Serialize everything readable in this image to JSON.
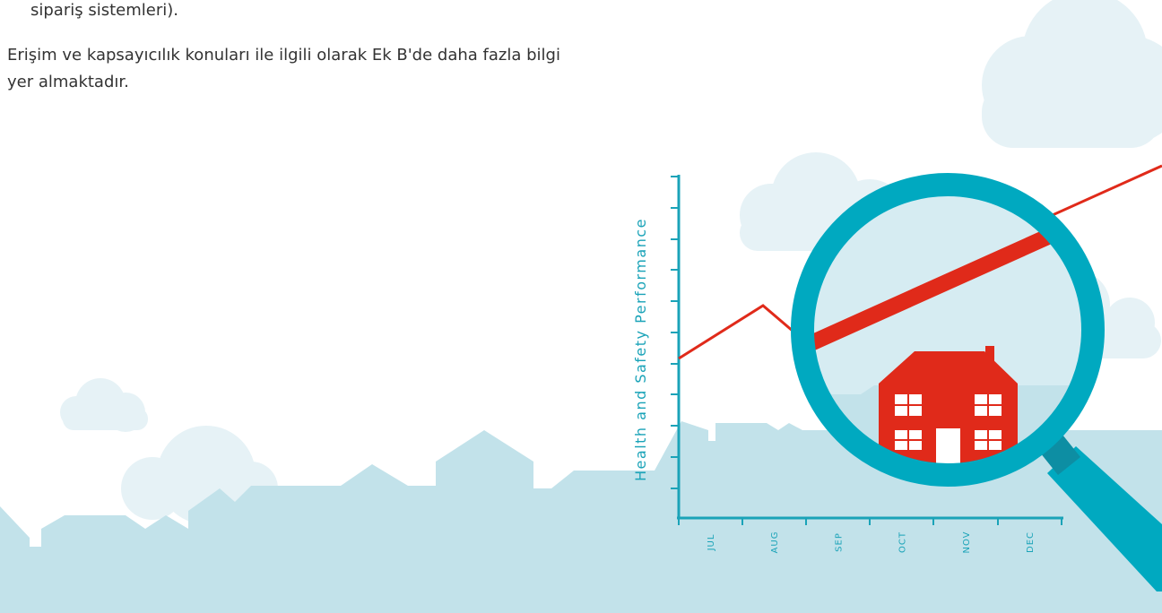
{
  "document": {
    "list_item_tail": "sipariş sistemleri).",
    "paragraph": "Erişim ve kapsayıcılık konuları ile ilgili olarak Ek B'de daha fazla bilgi yer almaktadır.",
    "illustration": {
      "y_axis_label": "Health and Safety Performance",
      "months": [
        "JUL",
        "AUG",
        "SEP",
        "OCT",
        "NOV",
        "DEC"
      ]
    }
  }
}
